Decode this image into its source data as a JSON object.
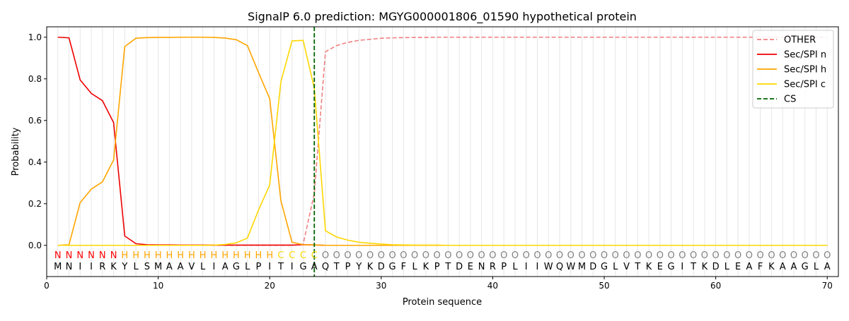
{
  "chart_data": {
    "type": "line",
    "title": "SignalP 6.0 prediction: MGYG000001806_01590 hypothetical protein",
    "xlabel": "Protein sequence",
    "ylabel": "Probability",
    "xlim": [
      0,
      71
    ],
    "ylim": [
      -0.15,
      1.05
    ],
    "x_ticks": [
      0,
      10,
      20,
      30,
      40,
      50,
      60,
      70
    ],
    "y_ticks": [
      0.0,
      0.2,
      0.4,
      0.6,
      0.8,
      1.0
    ],
    "grid": "vertical lines at each residue",
    "legend_position": "top-right",
    "sequence": "MNIIRKYLSMAAVLIAGLPITIGAQTPYKDGFLKPTDENRPLIIWQWMDGLVTKEGITKDLEAFKAAGLA",
    "labels": "NNNNNNHHHHHHHHHHHHHHCCCCOOOOOOOOOOOOOOOOOOOOOOOOOOOOOOOOOOOOOOOOOOOOOO",
    "label_colors": {
      "N": "#ff0000",
      "H": "#ffa500",
      "C": "#ffd700",
      "O": "#808080"
    },
    "cleavage_site": 24,
    "series": [
      {
        "name": "OTHER",
        "color": "#f08080",
        "style": "dashed",
        "values": [
          0,
          0,
          0,
          0,
          0,
          0,
          0,
          0,
          0,
          0,
          0,
          0,
          0,
          0,
          0,
          0,
          0,
          0,
          0,
          0,
          0,
          0,
          0.005,
          0.25,
          0.93,
          0.96,
          0.975,
          0.985,
          0.99,
          0.995,
          0.997,
          0.998,
          0.999,
          0.999,
          1,
          1,
          1,
          1,
          1,
          1,
          1,
          1,
          1,
          1,
          1,
          1,
          1,
          1,
          1,
          1,
          1,
          1,
          1,
          1,
          1,
          1,
          1,
          1,
          1,
          1,
          1,
          1,
          1,
          1,
          1,
          1,
          1,
          1,
          1,
          1
        ]
      },
      {
        "name": "Sec/SPI n",
        "color": "#ee0000",
        "style": "solid",
        "values": [
          1.0,
          0.997,
          0.795,
          0.73,
          0.695,
          0.59,
          0.045,
          0.008,
          0.003,
          0.002,
          0.002,
          0.001,
          0.001,
          0.001,
          0.001,
          0.001,
          0.001,
          0.001,
          0.001,
          0.001,
          0.001,
          0.001,
          0.003,
          0.002,
          0,
          0,
          0,
          0,
          0,
          0,
          0,
          0,
          0,
          0,
          0,
          0,
          0,
          0,
          0,
          0,
          0,
          0,
          0,
          0,
          0,
          0,
          0,
          0,
          0,
          0,
          0,
          0,
          0,
          0,
          0,
          0,
          0,
          0,
          0,
          0,
          0,
          0,
          0,
          0,
          0,
          0,
          0,
          0,
          0,
          0
        ]
      },
      {
        "name": "Sec/SPI h",
        "color": "#ffa500",
        "style": "solid",
        "values": [
          0,
          0.003,
          0.205,
          0.27,
          0.305,
          0.41,
          0.955,
          0.995,
          0.998,
          0.999,
          0.999,
          1.0,
          1.0,
          1.0,
          0.999,
          0.996,
          0.988,
          0.96,
          0.83,
          0.705,
          0.215,
          0.015,
          0.003,
          0.002,
          0,
          0,
          0,
          0,
          0,
          0,
          0,
          0,
          0,
          0,
          0,
          0,
          0,
          0,
          0,
          0,
          0,
          0,
          0,
          0,
          0,
          0,
          0,
          0,
          0,
          0,
          0,
          0,
          0,
          0,
          0,
          0,
          0,
          0,
          0,
          0,
          0,
          0,
          0,
          0,
          0,
          0,
          0,
          0,
          0,
          0
        ]
      },
      {
        "name": "Sec/SPI c",
        "color": "#ffd700",
        "style": "solid",
        "values": [
          0,
          0,
          0,
          0,
          0,
          0,
          0,
          0,
          0,
          0,
          0,
          0,
          0,
          0,
          0.001,
          0.004,
          0.012,
          0.035,
          0.17,
          0.29,
          0.785,
          0.982,
          0.985,
          0.755,
          0.07,
          0.04,
          0.025,
          0.015,
          0.01,
          0.006,
          0.003,
          0.002,
          0.001,
          0.001,
          0.001,
          0,
          0,
          0,
          0,
          0,
          0,
          0,
          0,
          0,
          0,
          0,
          0,
          0,
          0,
          0,
          0,
          0,
          0,
          0,
          0,
          0,
          0,
          0,
          0,
          0,
          0,
          0,
          0,
          0,
          0,
          0,
          0,
          0,
          0,
          0
        ]
      }
    ],
    "legend": [
      {
        "label": "OTHER",
        "color": "#f08080",
        "style": "dashed"
      },
      {
        "label": "Sec/SPI n",
        "color": "#ee0000",
        "style": "solid"
      },
      {
        "label": "Sec/SPI h",
        "color": "#ffa500",
        "style": "solid"
      },
      {
        "label": "Sec/SPI c",
        "color": "#ffd700",
        "style": "solid"
      },
      {
        "label": "CS",
        "color": "#006400",
        "style": "dashed"
      }
    ]
  }
}
